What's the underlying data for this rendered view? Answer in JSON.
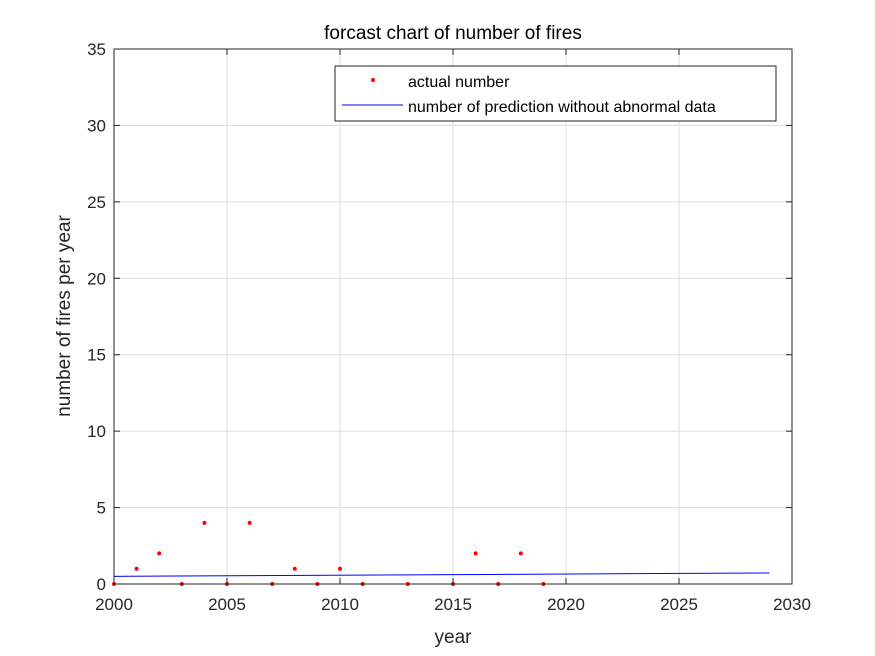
{
  "chart_data": {
    "type": "scatter",
    "title": "forcast chart of number of fires",
    "xlabel": "year",
    "ylabel": "number of fires per year",
    "xlim": [
      2000,
      2030
    ],
    "ylim": [
      0,
      35
    ],
    "xticks": [
      2000,
      2005,
      2010,
      2015,
      2020,
      2025,
      2030
    ],
    "yticks": [
      0,
      5,
      10,
      15,
      20,
      25,
      30,
      35
    ],
    "grid": true,
    "legend_position": "top-right",
    "series": [
      {
        "name": "actual number",
        "kind": "points",
        "color": "#ff0000",
        "x": [
          2000,
          2001,
          2002,
          2003,
          2004,
          2005,
          2006,
          2007,
          2008,
          2009,
          2010,
          2011,
          2013,
          2015,
          2016,
          2017,
          2018,
          2019
        ],
        "y": [
          0,
          1,
          2,
          0,
          4,
          0,
          4,
          0,
          1,
          0,
          1,
          0,
          0,
          0,
          2,
          0,
          2,
          0
        ]
      },
      {
        "name": "number of prediction without abnormal data",
        "kind": "line",
        "color": "#0000ff",
        "x": [
          2000,
          2029
        ],
        "y": [
          0.5,
          0.72
        ]
      }
    ]
  }
}
